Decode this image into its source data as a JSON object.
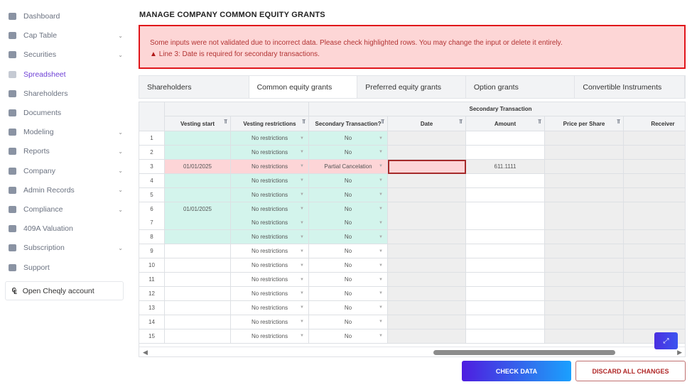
{
  "sidebar": {
    "items": [
      {
        "label": "Dashboard",
        "chevron": false,
        "icon": "dashboard-icon"
      },
      {
        "label": "Cap Table",
        "chevron": true,
        "icon": "pie-chart-icon"
      },
      {
        "label": "Securities",
        "chevron": true,
        "icon": "clipboard-icon"
      },
      {
        "label": "Spreadsheet",
        "chevron": false,
        "icon": "spreadsheet-icon",
        "active": true
      },
      {
        "label": "Shareholders",
        "chevron": false,
        "icon": "person-icon"
      },
      {
        "label": "Documents",
        "chevron": false,
        "icon": "folder-icon"
      },
      {
        "label": "Modeling",
        "chevron": true,
        "icon": "lightbulb-icon"
      },
      {
        "label": "Reports",
        "chevron": true,
        "icon": "report-icon"
      },
      {
        "label": "Company",
        "chevron": true,
        "icon": "building-icon"
      },
      {
        "label": "Admin Records",
        "chevron": true,
        "icon": "records-icon"
      },
      {
        "label": "Compliance",
        "chevron": true,
        "icon": "shield-icon"
      },
      {
        "label": "409A Valuation",
        "chevron": false,
        "icon": "bar-chart-icon"
      },
      {
        "label": "Subscription",
        "chevron": true,
        "icon": "dollar-icon"
      },
      {
        "label": "Support",
        "chevron": false,
        "icon": "chat-icon"
      }
    ],
    "open_account": "Open Cheqly account"
  },
  "page": {
    "title": "MANAGE COMPANY COMMON EQUITY GRANTS"
  },
  "banner": {
    "message": "Some inputs were not validated due to incorrect data. Please check highlighted rows. You may change the input or delete it entirely.",
    "error": "Line 3: Date is required for secondary transactions."
  },
  "tabs": [
    "Shareholders",
    "Common equity grants",
    "Preferred equity grants",
    "Option grants",
    "Convertible Instruments"
  ],
  "grid": {
    "group_header": "Secondary Transaction",
    "columns": [
      "Vesting start",
      "Vesting restrictions",
      "Secondary Transaction?",
      "Date",
      "Amount",
      "Price per Share",
      "Receiver"
    ],
    "rows": [
      {
        "n": "1",
        "vesting_start": "",
        "restrictions": "No restrictions",
        "secondary": "No",
        "date": "",
        "amount": "",
        "state": "valid"
      },
      {
        "n": "2",
        "vesting_start": "",
        "restrictions": "No restrictions",
        "secondary": "No",
        "date": "",
        "amount": "",
        "state": "valid"
      },
      {
        "n": "3",
        "vesting_start": "01/01/2025",
        "restrictions": "No restrictions",
        "secondary": "Partial Cancelation",
        "date": "",
        "amount": "611.1111",
        "state": "error"
      },
      {
        "n": "4",
        "vesting_start": "",
        "restrictions": "No restrictions",
        "secondary": "No",
        "date": "",
        "amount": "",
        "state": "valid"
      },
      {
        "n": "5",
        "vesting_start": "",
        "restrictions": "No restrictions",
        "secondary": "No",
        "date": "",
        "amount": "",
        "state": "valid"
      },
      {
        "n": "6",
        "vesting_start": "01/01/2025",
        "restrictions": "No restrictions",
        "secondary": "No",
        "date": "",
        "amount": "",
        "state": "valid"
      },
      {
        "n": "7",
        "vesting_start": "",
        "restrictions": "No restrictions",
        "secondary": "No",
        "date": "",
        "amount": "",
        "state": "valid"
      },
      {
        "n": "8",
        "vesting_start": "",
        "restrictions": "No restrictions",
        "secondary": "No",
        "date": "",
        "amount": "",
        "state": "valid"
      },
      {
        "n": "9",
        "vesting_start": "",
        "restrictions": "No restrictions",
        "secondary": "No",
        "date": "",
        "amount": "",
        "state": "new"
      },
      {
        "n": "10",
        "vesting_start": "",
        "restrictions": "No restrictions",
        "secondary": "No",
        "date": "",
        "amount": "",
        "state": "new"
      },
      {
        "n": "11",
        "vesting_start": "",
        "restrictions": "No restrictions",
        "secondary": "No",
        "date": "",
        "amount": "",
        "state": "new"
      },
      {
        "n": "12",
        "vesting_start": "",
        "restrictions": "No restrictions",
        "secondary": "No",
        "date": "",
        "amount": "",
        "state": "new"
      },
      {
        "n": "13",
        "vesting_start": "",
        "restrictions": "No restrictions",
        "secondary": "No",
        "date": "",
        "amount": "",
        "state": "new"
      },
      {
        "n": "14",
        "vesting_start": "",
        "restrictions": "No restrictions",
        "secondary": "No",
        "date": "",
        "amount": "",
        "state": "new"
      },
      {
        "n": "15",
        "vesting_start": "",
        "restrictions": "No restrictions",
        "secondary": "No",
        "date": "",
        "amount": "",
        "state": "new"
      }
    ]
  },
  "actions": {
    "check": "CHECK DATA",
    "discard": "DISCARD ALL CHANGES"
  },
  "colors": {
    "valid": "#d3f4ec",
    "error": "#fdd5d7",
    "readonly": "#eeeeee",
    "accent": "#6d3fd6"
  }
}
